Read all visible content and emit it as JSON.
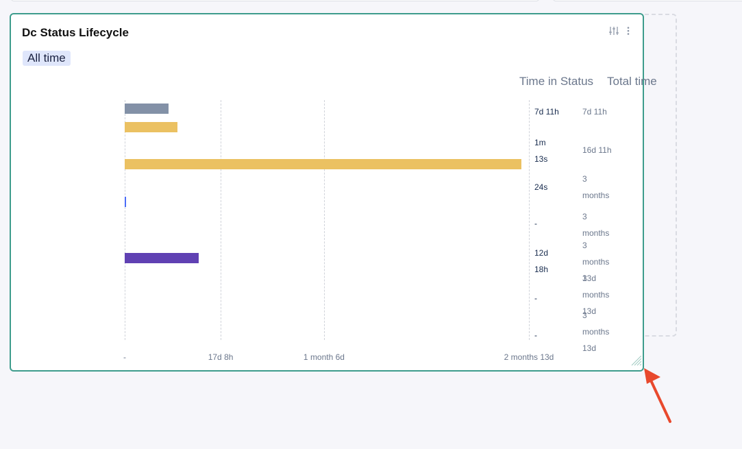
{
  "widget": {
    "title": "Dc Status Lifecycle",
    "filter_chip": "All time",
    "columns": {
      "time_in_status": "Time in Status",
      "total_time": "Total time"
    },
    "rows": [
      {
        "time_in_status": "7d 11h",
        "total_time": "7d 11h"
      },
      {
        "time_in_status": "1m\n13s",
        "total_time": "16d 11h"
      },
      {
        "time_in_status": "24s",
        "total_time": "3\nmonths"
      },
      {
        "time_in_status": "-",
        "total_time": "3\nmonths"
      },
      {
        "time_in_status": "12d\n18h",
        "total_time": "3\nmonths\n13d"
      },
      {
        "time_in_status": "-",
        "total_time": "3\nmonths\n13d"
      },
      {
        "time_in_status": "-",
        "total_time": "3\nmonths\n13d"
      }
    ]
  },
  "chart_data": {
    "type": "bar",
    "orientation": "horizontal",
    "x_ticks": [
      "-",
      "17d 8h",
      "1 month 6d",
      "2 months 13d"
    ],
    "x_tick_values_days": [
      0,
      17.33,
      36,
      73
    ],
    "xlim_days": [
      0,
      73
    ],
    "grid": true,
    "bars": [
      {
        "row": 0,
        "value_days": 7.9,
        "color": "#8391a7"
      },
      {
        "row": 0,
        "value_days": 9.5,
        "color": "#ebc162"
      },
      {
        "row": 1,
        "value_days": 71.6,
        "color": "#ebc162"
      },
      {
        "row": 2,
        "value_days": 0.15,
        "color": "#4a6cf7"
      },
      {
        "row": 4,
        "value_days": 13.4,
        "color": "#6041b3"
      }
    ]
  },
  "colors": {
    "accent_border": "#3d9c8c",
    "arrow": "#e8492d",
    "chip_bg": "#dfe6fb"
  },
  "icons": {
    "settings": "sliders-icon",
    "more": "more-vertical-icon",
    "resize": "resize-handle-icon"
  }
}
